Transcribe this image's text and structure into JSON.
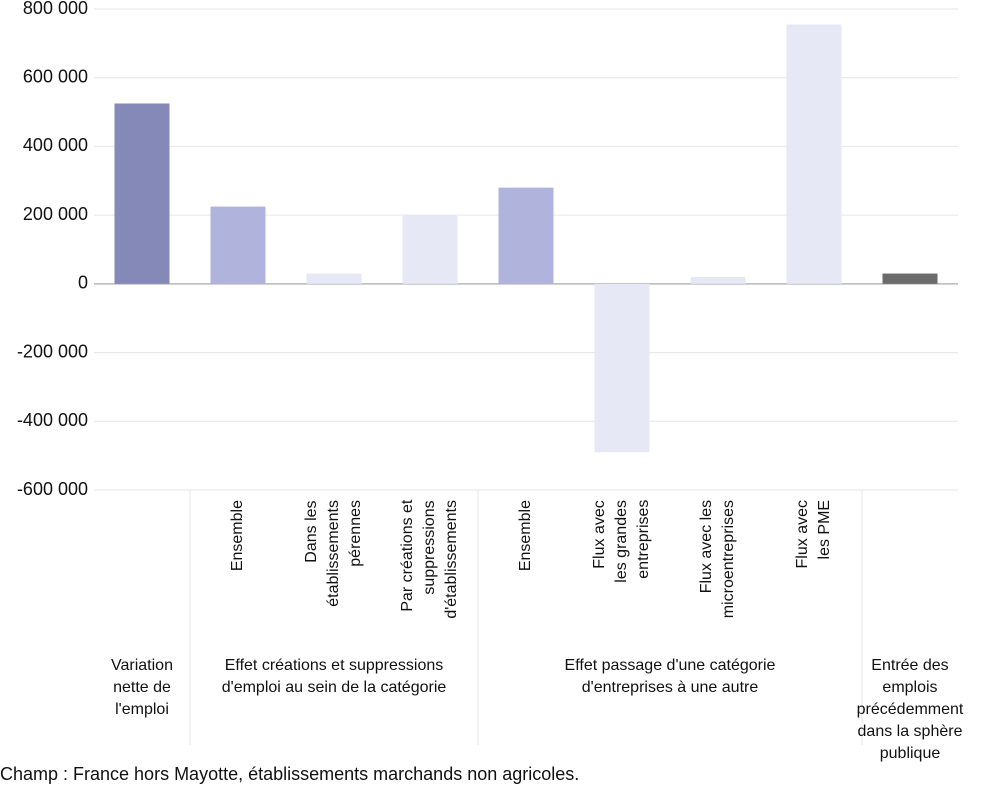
{
  "chart_data": {
    "type": "bar",
    "groups": [
      {
        "label": "Variation\nnette de\nl'emploi",
        "categories": [
          null
        ]
      },
      {
        "label": "Effet créations et suppressions\nd'emploi au sein de la catégorie",
        "categories": [
          "Ensemble",
          "Dans les\nétablissements\npérennes",
          "Par créations et\nsuppressions\nd'établissements"
        ]
      },
      {
        "label": "Effet passage d'une catégorie\nd'entreprises à une autre",
        "categories": [
          "Ensemble",
          "Flux avec\nles grandes\nentreprises",
          "Flux avec les\nmicroentreprises",
          "Flux avec\nles PME"
        ]
      },
      {
        "label": "Entrée des\nemplois\nprécédemment\ndans la sphère\npublique",
        "categories": [
          null
        ]
      }
    ],
    "values": [
      525000,
      225000,
      30000,
      200000,
      280000,
      -490000,
      20000,
      755000,
      30000
    ],
    "colors": [
      "#8489b8",
      "#b0b4dc",
      "#e6e8f5",
      "#e6e8f5",
      "#b0b4dc",
      "#e6e8f5",
      "#e6e8f5",
      "#e6e8f5",
      "#6b6b6b"
    ],
    "ylim": [
      -600000,
      800000
    ],
    "yticks": [
      {
        "value": -600000,
        "label": "-600 000"
      },
      {
        "value": -400000,
        "label": "-400 000"
      },
      {
        "value": -200000,
        "label": "-200 000"
      },
      0,
      {
        "value": 200000,
        "label": "200 000"
      },
      {
        "value": 400000,
        "label": "400 000"
      },
      {
        "value": 600000,
        "label": "600 000"
      },
      {
        "value": 800000,
        "label": "800 000"
      }
    ],
    "grid": true,
    "note": "Champ : France hors Mayotte, établissements marchands non agricoles."
  }
}
